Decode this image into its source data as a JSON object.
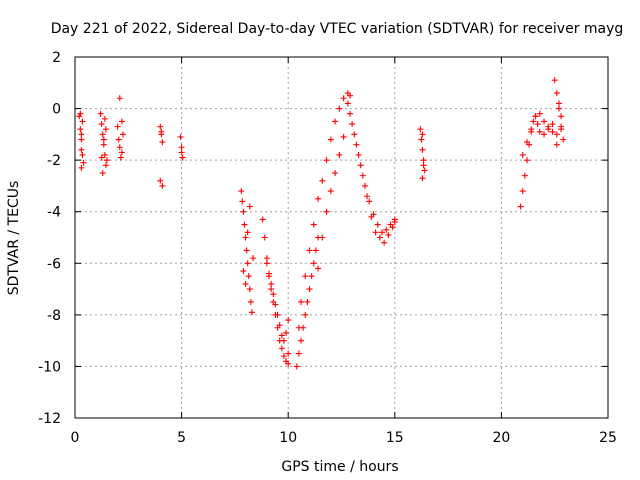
{
  "chart_data": {
    "type": "scatter",
    "title": "Day 221 of 2022, Sidereal Day-to-day VTEC variation (SDTVAR) for receiver mayg",
    "xlabel": "GPS time / hours",
    "ylabel": "SDTVAR / TECUs",
    "xlim": [
      0,
      25
    ],
    "ylim": [
      -12,
      2
    ],
    "xticks": [
      0,
      5,
      10,
      15,
      20,
      25
    ],
    "xtick_labels": [
      "0",
      "5",
      "10",
      "15",
      "20",
      "25"
    ],
    "yticks": [
      2,
      0,
      -2,
      -4,
      -6,
      -8,
      -10,
      -12
    ],
    "ytick_labels": [
      "2",
      "0",
      "-2",
      "-4",
      "-6",
      "-8",
      "-10",
      "-12"
    ],
    "grid": true,
    "marker": "+",
    "color": "#ff0000",
    "series": [
      {
        "name": "SDTVAR",
        "x": [
          0.2,
          0.25,
          0.3,
          0.3,
          0.35,
          0.4,
          0.25,
          0.35,
          0.3,
          0.3,
          1.2,
          1.25,
          1.3,
          1.35,
          1.4,
          1.45,
          1.3,
          1.4,
          1.25,
          1.35,
          1.45,
          1.5,
          2.0,
          2.05,
          2.1,
          2.15,
          2.2,
          2.1,
          2.2,
          2.25,
          4.0,
          4.05,
          4.1,
          4.0,
          4.1,
          4.05,
          4.95,
          5.0,
          5.05,
          5.0,
          7.8,
          7.85,
          7.9,
          7.95,
          8.0,
          8.05,
          8.1,
          8.15,
          8.2,
          8.25,
          8.3,
          8.35,
          8.0,
          8.1,
          8.2,
          7.9,
          8.8,
          8.9,
          9.0,
          9.1,
          9.2,
          9.3,
          9.4,
          9.5,
          9.6,
          9.7,
          9.8,
          9.9,
          10.0,
          10.0,
          9.0,
          9.1,
          9.2,
          9.3,
          9.4,
          9.5,
          9.6,
          9.7,
          9.8,
          9.9,
          10.0,
          10.4,
          10.5,
          10.6,
          10.7,
          10.8,
          10.9,
          11.0,
          11.1,
          11.2,
          11.3,
          11.4,
          10.5,
          10.6,
          10.8,
          11.0,
          11.2,
          11.4,
          11.6,
          11.8,
          12.0,
          12.2,
          12.4,
          12.6,
          12.8,
          12.9,
          11.4,
          11.6,
          11.8,
          12.0,
          12.2,
          12.4,
          12.6,
          12.8,
          13.0,
          13.2,
          13.4,
          13.6,
          13.8,
          14.0,
          14.2,
          14.4,
          14.6,
          14.8,
          15.0,
          12.9,
          13.1,
          13.3,
          13.5,
          13.7,
          13.9,
          14.1,
          14.3,
          14.5,
          14.7,
          14.9,
          15.0,
          16.2,
          16.25,
          16.3,
          16.35,
          16.4,
          16.3,
          16.35,
          16.3,
          20.9,
          21.0,
          21.1,
          21.2,
          21.3,
          21.4,
          21.5,
          21.6,
          21.7,
          21.8,
          22.0,
          22.2,
          22.4,
          21.0,
          21.2,
          21.4,
          21.6,
          21.8,
          22.0,
          22.2,
          22.4,
          22.6,
          22.8,
          22.5,
          22.6,
          22.7,
          22.8,
          22.9,
          22.6,
          22.7,
          22.8
        ],
        "y": [
          -0.3,
          -0.8,
          -1.2,
          -1.6,
          -0.5,
          -2.1,
          -0.2,
          -1.8,
          -2.3,
          -1.0,
          -0.2,
          -0.6,
          -1.0,
          -1.4,
          -1.8,
          -2.2,
          -2.5,
          -0.4,
          -1.9,
          -1.2,
          -0.8,
          -2.0,
          -0.7,
          -1.2,
          -1.5,
          -1.9,
          -0.5,
          0.4,
          -1.7,
          -1.0,
          -0.7,
          -1.0,
          -1.3,
          -2.8,
          -3.0,
          -0.9,
          -1.1,
          -1.5,
          -1.9,
          -1.7,
          -3.2,
          -3.6,
          -4.0,
          -4.5,
          -5.0,
          -5.5,
          -6.0,
          -6.5,
          -7.0,
          -7.5,
          -7.9,
          -5.8,
          -6.8,
          -4.8,
          -3.8,
          -6.3,
          -4.3,
          -5.0,
          -5.8,
          -6.5,
          -7.0,
          -7.5,
          -8.0,
          -8.5,
          -9.0,
          -9.3,
          -9.6,
          -9.8,
          -9.9,
          -9.5,
          -6.0,
          -6.4,
          -6.8,
          -7.2,
          -7.6,
          -8.0,
          -8.4,
          -8.8,
          -9.0,
          -8.7,
          -8.2,
          -10.0,
          -9.5,
          -9.0,
          -8.5,
          -8.0,
          -7.5,
          -7.0,
          -6.5,
          -6.0,
          -5.5,
          -5.0,
          -8.5,
          -7.5,
          -6.5,
          -5.5,
          -4.5,
          -3.5,
          -2.8,
          -2.0,
          -1.2,
          -0.5,
          0.0,
          0.4,
          0.6,
          0.5,
          -6.2,
          -5.0,
          -4.0,
          -3.2,
          -2.5,
          -1.8,
          -1.1,
          0.2,
          -0.6,
          -1.4,
          -2.2,
          -3.0,
          -3.6,
          -4.1,
          -4.5,
          -4.8,
          -4.7,
          -4.5,
          -4.3,
          -0.2,
          -1.0,
          -1.8,
          -2.6,
          -3.4,
          -4.2,
          -4.8,
          -5.0,
          -5.2,
          -4.9,
          -4.6,
          -4.4,
          -0.8,
          -1.2,
          -1.6,
          -2.0,
          -2.4,
          -2.7,
          -2.2,
          -1.0,
          -3.8,
          -3.2,
          -2.6,
          -2.0,
          -1.4,
          -0.9,
          -0.5,
          -0.3,
          -0.6,
          -0.9,
          -1.0,
          -0.8,
          -0.6,
          -1.8,
          -1.3,
          -0.8,
          -0.3,
          -0.2,
          -0.5,
          -0.7,
          -0.9,
          -1.0,
          -0.8,
          1.1,
          0.6,
          0.2,
          -0.3,
          -1.2,
          -1.4,
          0.0,
          -0.7
        ]
      }
    ]
  }
}
